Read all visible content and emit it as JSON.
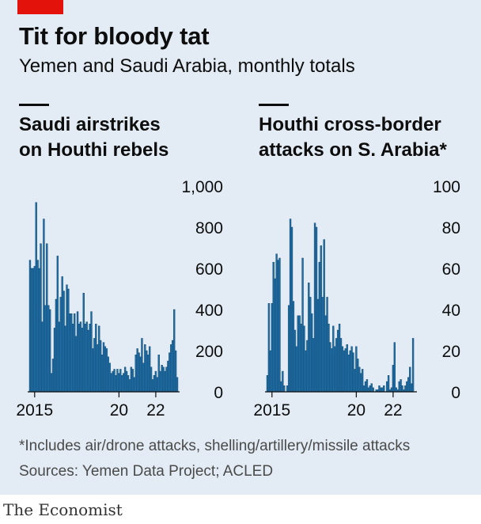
{
  "header": {
    "title": "Tit for bloody tat",
    "subtitle": "Yemen and Saudi Arabia, monthly totals"
  },
  "footer": {
    "note": "*Includes air/drone attacks, shelling/artillery/missile attacks",
    "source": "Sources: Yemen Data Project; ACLED",
    "logo": "The Economist"
  },
  "colors": {
    "bar": "#1f6ea5",
    "bar_edge": "#0f3f66",
    "accent": "#e3120b",
    "background": "#e3ecf4"
  },
  "chart_data": [
    {
      "type": "bar",
      "title_lines": [
        "Saudi airstrikes",
        "on Houthi rebels"
      ],
      "start": "2015-03",
      "ylim": [
        0,
        1000
      ],
      "yticks": [
        0,
        200,
        400,
        600,
        800,
        1000
      ],
      "ytick_labels": [
        "0",
        "200",
        "400",
        "600",
        "800",
        "1,000"
      ],
      "xticks": [
        {
          "label": "2015",
          "at": "2015-06"
        },
        {
          "label": "20",
          "at": "2020-01"
        },
        {
          "label": "22",
          "at": "2022-01"
        }
      ],
      "grid": false,
      "values": [
        640,
        600,
        600,
        610,
        920,
        640,
        600,
        720,
        340,
        840,
        420,
        720,
        420,
        400,
        90,
        160,
        310,
        450,
        660,
        340,
        460,
        560,
        490,
        320,
        520,
        500,
        380,
        380,
        330,
        380,
        270,
        390,
        330,
        340,
        310,
        480,
        330,
        340,
        300,
        330,
        390,
        210,
        260,
        330,
        230,
        320,
        250,
        180,
        240,
        220,
        210,
        170,
        140,
        90,
        100,
        110,
        80,
        110,
        90,
        110,
        80,
        90,
        120,
        100,
        80,
        60,
        120,
        110,
        70,
        180,
        210,
        190,
        170,
        260,
        140,
        230,
        200,
        180,
        220,
        120,
        60,
        80,
        100,
        70,
        180,
        100,
        130,
        120,
        100,
        120,
        150,
        190,
        230,
        250,
        400,
        200,
        70
      ]
    },
    {
      "type": "bar",
      "title_lines": [
        "Houthi cross-border",
        "attacks on S. Arabia*"
      ],
      "start": "2015-03",
      "ylim": [
        0,
        100
      ],
      "yticks": [
        0,
        20,
        40,
        60,
        80,
        100
      ],
      "ytick_labels": [
        "0",
        "20",
        "40",
        "60",
        "80",
        "100"
      ],
      "xticks": [
        {
          "label": "2015",
          "at": "2015-06"
        },
        {
          "label": "20",
          "at": "2020-01"
        },
        {
          "label": "22",
          "at": "2022-01"
        }
      ],
      "grid": false,
      "values": [
        8,
        43,
        20,
        43,
        63,
        55,
        67,
        64,
        65,
        5,
        10,
        3,
        0,
        3,
        42,
        84,
        80,
        44,
        30,
        22,
        37,
        37,
        33,
        65,
        32,
        20,
        25,
        53,
        46,
        38,
        26,
        82,
        80,
        45,
        63,
        71,
        46,
        74,
        37,
        46,
        33,
        24,
        21,
        32,
        22,
        26,
        30,
        33,
        26,
        22,
        20,
        21,
        23,
        18,
        20,
        22,
        19,
        11,
        22,
        16,
        12,
        9,
        11,
        3,
        5,
        6,
        2,
        3,
        4,
        2,
        0,
        1,
        1,
        3,
        2,
        2,
        3,
        0,
        5,
        8,
        1,
        2,
        13,
        24,
        2,
        1,
        5,
        6,
        3,
        1,
        3,
        5,
        7,
        12,
        4,
        26,
        0
      ]
    }
  ]
}
